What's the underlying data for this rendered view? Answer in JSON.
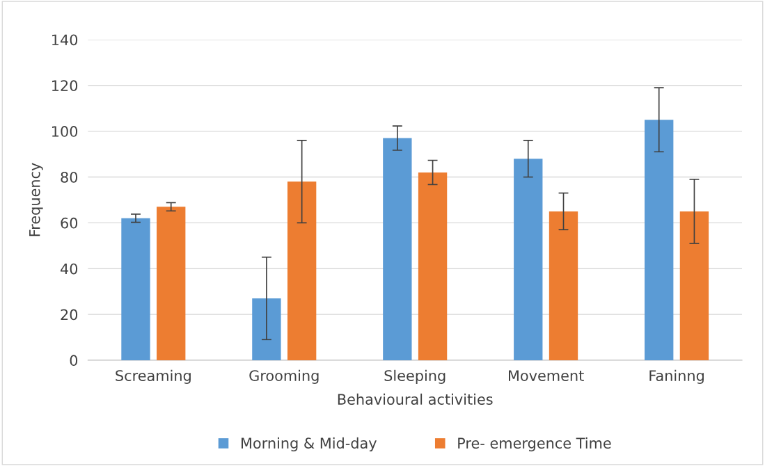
{
  "chart_data": {
    "type": "bar",
    "xlabel": "Behavioural activities",
    "ylabel": "Frequency",
    "categories": [
      "Screaming",
      "Grooming",
      "Sleeping",
      "Movement",
      "Faninng"
    ],
    "series": [
      {
        "name": "Morning & Mid-day",
        "color": "#5b9bd5",
        "values": [
          62,
          27,
          97,
          88,
          105
        ],
        "errors": [
          1.8,
          18,
          5.3,
          8,
          14
        ]
      },
      {
        "name": "Pre- emergence Time",
        "color": "#ed7d31",
        "values": [
          67,
          78,
          82,
          65,
          65
        ],
        "errors": [
          1.8,
          18,
          5.3,
          8,
          14
        ]
      }
    ],
    "ylim": [
      0,
      140
    ],
    "yticks": [
      0,
      20,
      40,
      60,
      80,
      100,
      120,
      140
    ],
    "grid": "y",
    "legend": "bottom"
  }
}
